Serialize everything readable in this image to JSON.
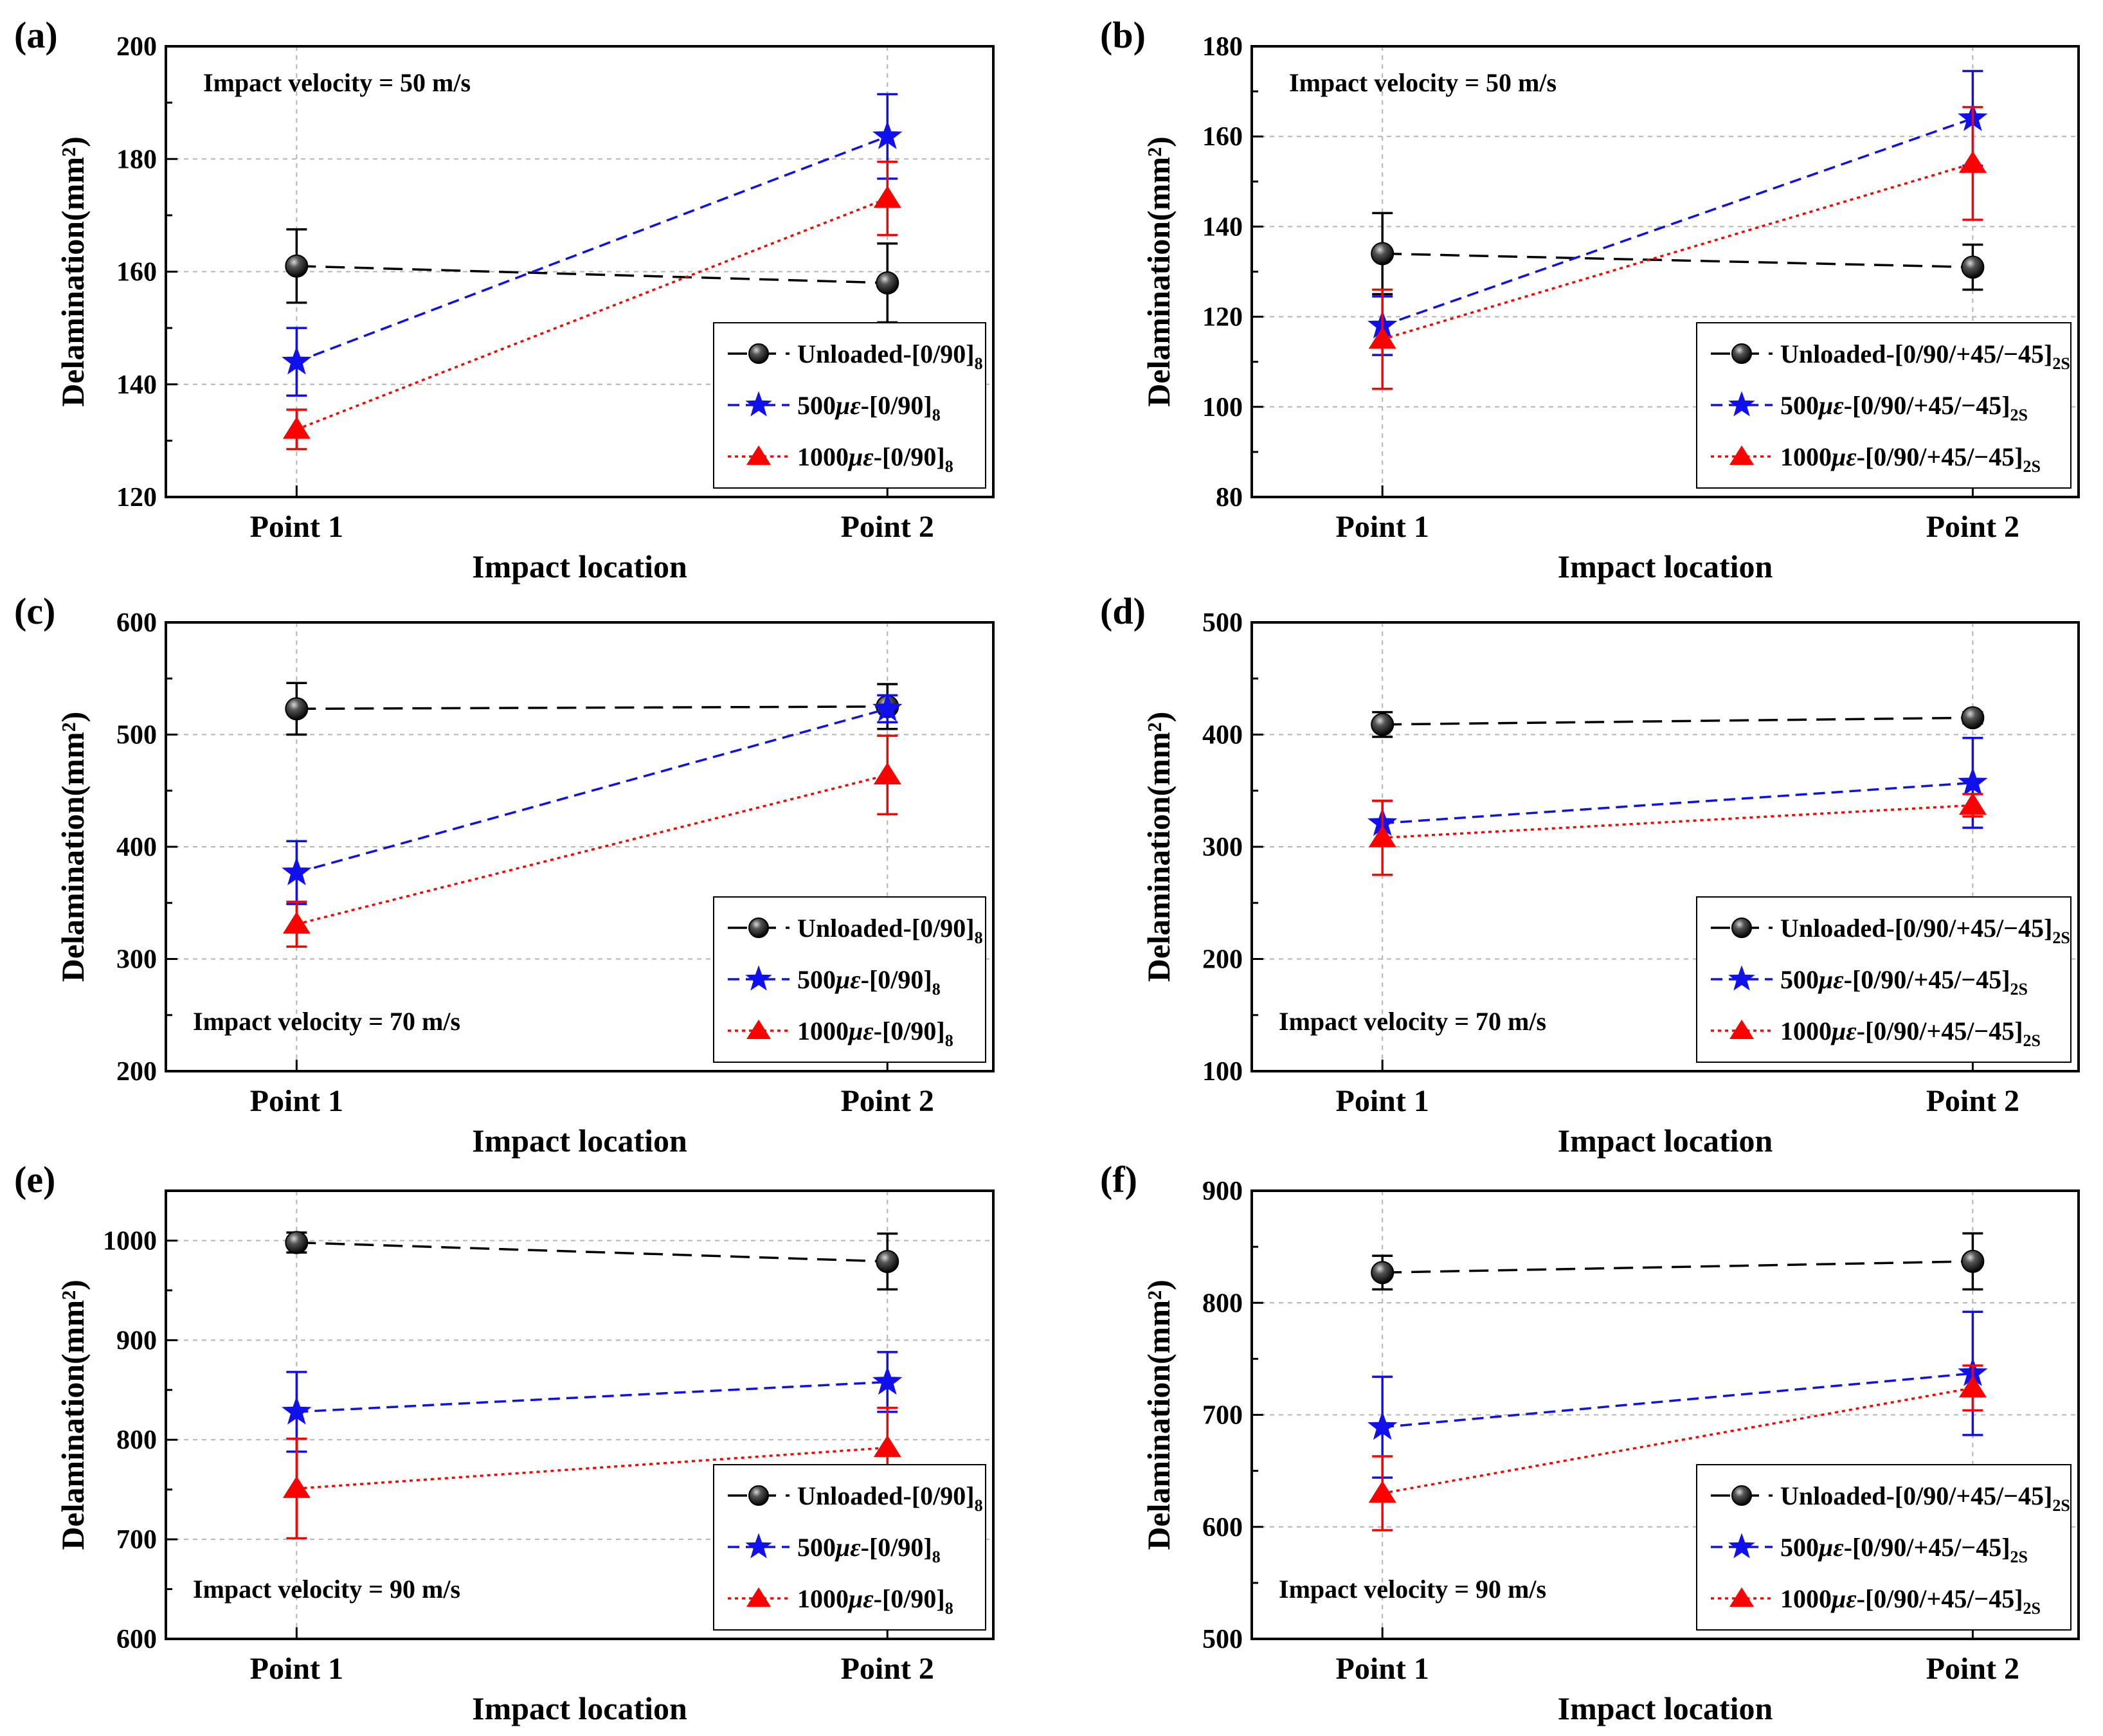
{
  "figure": {
    "x_categories": [
      "Point 1",
      "Point 2"
    ],
    "xlabel": "Impact location",
    "ylabel": "Delamination(mm²)",
    "colors": {
      "unloaded": "#000000",
      "s500": "#1010ee",
      "s1000": "#ff0000",
      "grid": "#b4b4b4"
    }
  },
  "chart_data": [
    {
      "id": "a",
      "panel_label": "(a)",
      "type": "line",
      "annotation": "Impact velocity = 50 m/s",
      "legend_position": "lower-right",
      "categories": [
        "Point 1",
        "Point 2"
      ],
      "ylim": [
        120,
        200
      ],
      "yticks": [
        120,
        140,
        160,
        180,
        200
      ],
      "series": [
        {
          "key": "unloaded",
          "marker": "sphere",
          "prefix": "Unloaded-[0/90]",
          "sub": "8",
          "values": [
            161,
            158
          ],
          "errors": [
            6.5,
            7
          ]
        },
        {
          "key": "s500",
          "marker": "star",
          "prefix": "500",
          "mu": "με",
          "suffix": "-[0/90]",
          "sub": "8",
          "values": [
            144,
            184
          ],
          "errors": [
            6,
            7.5
          ]
        },
        {
          "key": "s1000",
          "marker": "triangle",
          "prefix": "1000",
          "mu": "με",
          "suffix": "-[0/90]",
          "sub": "8",
          "values": [
            132,
            173
          ],
          "errors": [
            3.5,
            6.5
          ]
        }
      ]
    },
    {
      "id": "b",
      "panel_label": "(b)",
      "type": "line",
      "annotation": "Impact velocity = 50 m/s",
      "legend_position": "lower-right",
      "categories": [
        "Point 1",
        "Point 2"
      ],
      "ylim": [
        80,
        180
      ],
      "yticks": [
        80,
        100,
        120,
        140,
        160,
        180
      ],
      "series": [
        {
          "key": "unloaded",
          "marker": "sphere",
          "prefix": "Unloaded-[0/90/+45/−45]",
          "sub": "2S",
          "values": [
            134,
            131
          ],
          "errors": [
            9,
            5
          ]
        },
        {
          "key": "s500",
          "marker": "star",
          "prefix": "500",
          "mu": "με",
          "suffix": "-[0/90/+45/−45]",
          "sub": "2S",
          "values": [
            118,
            164
          ],
          "errors": [
            6.5,
            10.5
          ]
        },
        {
          "key": "s1000",
          "marker": "triangle",
          "prefix": "1000",
          "mu": "με",
          "suffix": "-[0/90/+45/−45]",
          "sub": "2S",
          "values": [
            115,
            154
          ],
          "errors": [
            11,
            12.5
          ]
        }
      ]
    },
    {
      "id": "c",
      "panel_label": "(c)",
      "type": "line",
      "annotation": "Impact velocity = 70 m/s",
      "legend_position": "lower-right",
      "categories": [
        "Point 1",
        "Point 2"
      ],
      "ylim": [
        200,
        600
      ],
      "yticks": [
        200,
        300,
        400,
        500,
        600
      ],
      "series": [
        {
          "key": "unloaded",
          "marker": "sphere",
          "prefix": "Unloaded-[0/90]",
          "sub": "8",
          "values": [
            523,
            525
          ],
          "errors": [
            23,
            20
          ]
        },
        {
          "key": "s500",
          "marker": "star",
          "prefix": "500",
          "mu": "με",
          "suffix": "-[0/90]",
          "sub": "8",
          "values": [
            377,
            523
          ],
          "errors": [
            28,
            12
          ]
        },
        {
          "key": "s1000",
          "marker": "triangle",
          "prefix": "1000",
          "mu": "με",
          "suffix": "-[0/90]",
          "sub": "8",
          "values": [
            331,
            464
          ],
          "errors": [
            20,
            35
          ]
        }
      ]
    },
    {
      "id": "d",
      "panel_label": "(d)",
      "type": "line",
      "annotation": "Impact velocity = 70 m/s",
      "legend_position": "lower-right",
      "categories": [
        "Point 1",
        "Point 2"
      ],
      "ylim": [
        100,
        500
      ],
      "yticks": [
        100,
        200,
        300,
        400,
        500
      ],
      "series": [
        {
          "key": "unloaded",
          "marker": "sphere",
          "prefix": "Unloaded-[0/90/+45/−45]",
          "sub": "2S",
          "values": [
            409,
            415
          ],
          "errors": [
            11,
            5
          ]
        },
        {
          "key": "s500",
          "marker": "star",
          "prefix": "500",
          "mu": "με",
          "suffix": "-[0/90/+45/−45]",
          "sub": "2S",
          "values": [
            321,
            357
          ],
          "errors": [
            20,
            40
          ]
        },
        {
          "key": "s1000",
          "marker": "triangle",
          "prefix": "1000",
          "mu": "με",
          "suffix": "-[0/90/+45/−45]",
          "sub": "2S",
          "values": [
            308,
            337
          ],
          "errors": [
            33,
            10
          ]
        }
      ]
    },
    {
      "id": "e",
      "panel_label": "(e)",
      "type": "line",
      "annotation": "Impact velocity = 90 m/s",
      "legend_position": "lower-right",
      "categories": [
        "Point 1",
        "Point 2"
      ],
      "ylim": [
        600,
        1050
      ],
      "yticks": [
        600,
        700,
        800,
        900,
        1000
      ],
      "series": [
        {
          "key": "unloaded",
          "marker": "sphere",
          "prefix": "Unloaded-[0/90]",
          "sub": "8",
          "values": [
            998,
            979
          ],
          "errors": [
            10,
            28
          ]
        },
        {
          "key": "s500",
          "marker": "star",
          "prefix": "500",
          "mu": "με",
          "suffix": "-[0/90]",
          "sub": "8",
          "values": [
            828,
            858
          ],
          "errors": [
            40,
            30
          ]
        },
        {
          "key": "s1000",
          "marker": "triangle",
          "prefix": "1000",
          "mu": "με",
          "suffix": "-[0/90]",
          "sub": "8",
          "values": [
            751,
            792
          ],
          "errors": [
            50,
            40
          ]
        }
      ]
    },
    {
      "id": "f",
      "panel_label": "(f)",
      "type": "line",
      "annotation": "Impact velocity = 90 m/s",
      "legend_position": "lower-right",
      "categories": [
        "Point 1",
        "Point 2"
      ],
      "ylim": [
        500,
        900
      ],
      "yticks": [
        500,
        600,
        700,
        800,
        900
      ],
      "series": [
        {
          "key": "unloaded",
          "marker": "sphere",
          "prefix": "Unloaded-[0/90/+45/−45]",
          "sub": "2S",
          "values": [
            827,
            837
          ],
          "errors": [
            15,
            25
          ]
        },
        {
          "key": "s500",
          "marker": "star",
          "prefix": "500",
          "mu": "με",
          "suffix": "-[0/90/+45/−45]",
          "sub": "2S",
          "values": [
            689,
            737
          ],
          "errors": [
            45,
            55
          ]
        },
        {
          "key": "s1000",
          "marker": "triangle",
          "prefix": "1000",
          "mu": "με",
          "suffix": "-[0/90/+45/−45]",
          "sub": "2S",
          "values": [
            630,
            724
          ],
          "errors": [
            33,
            20
          ]
        }
      ]
    }
  ]
}
